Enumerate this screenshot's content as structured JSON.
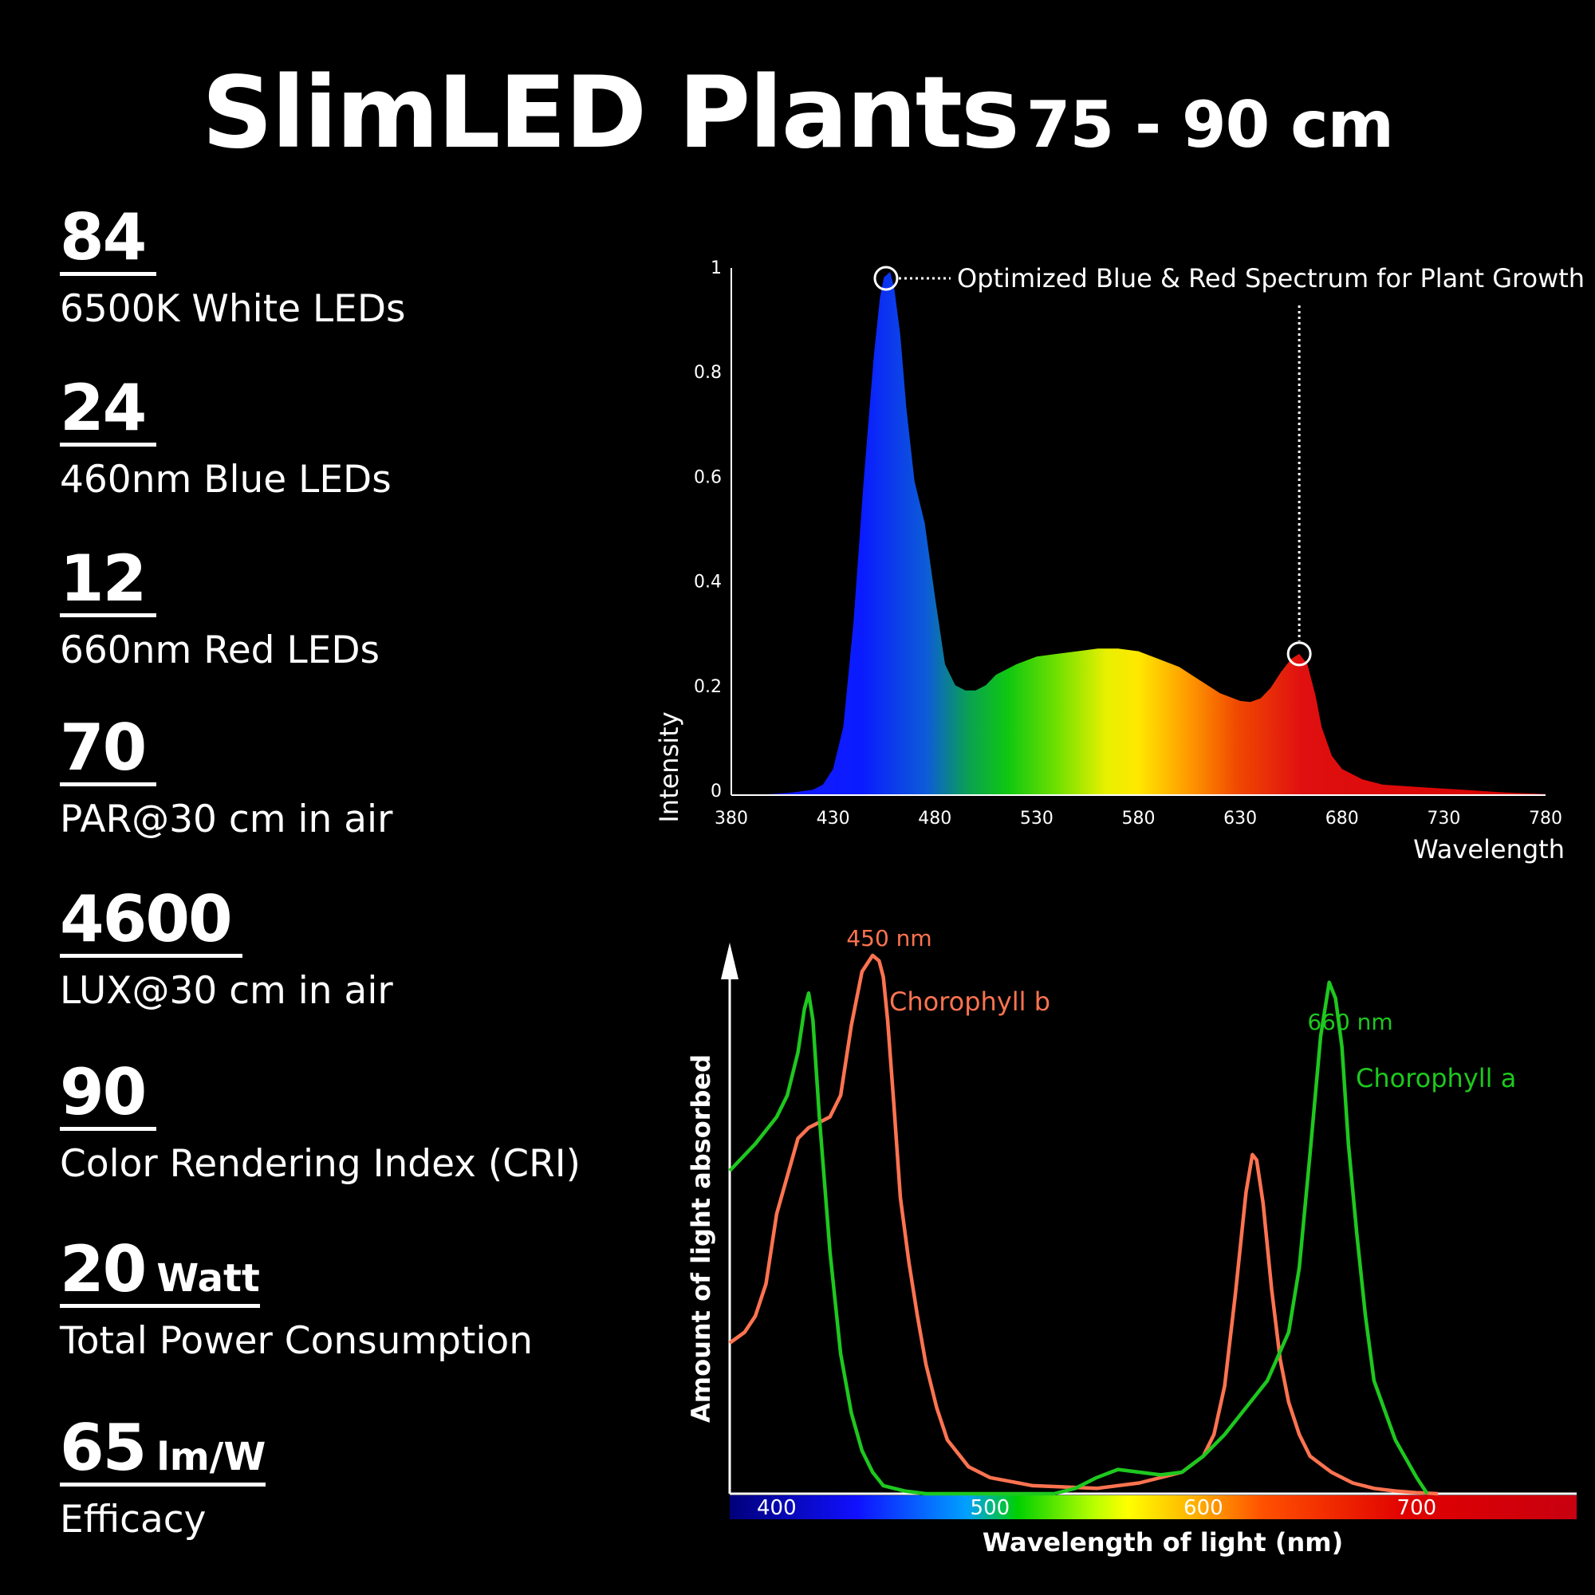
{
  "title": {
    "main": "SlimLED Plants",
    "sub": "75 - 90 cm"
  },
  "specs": [
    {
      "value": "84",
      "unit": "",
      "label": "6500K White LEDs"
    },
    {
      "value": "24",
      "unit": "",
      "label": "460nm Blue LEDs"
    },
    {
      "value": "12",
      "unit": "",
      "label": "660nm Red LEDs"
    },
    {
      "value": "70",
      "unit": "",
      "label": "PAR@30 cm in air"
    },
    {
      "value": "4600",
      "unit": "",
      "label": "LUX@30 cm in air"
    },
    {
      "value": "90",
      "unit": "",
      "label": "Color Rendering Index (CRI)"
    },
    {
      "value": "20",
      "unit": "Watt",
      "label": "Total Power Consumption"
    },
    {
      "value": "65",
      "unit": "lm/W",
      "label": "Efficacy"
    }
  ],
  "chart_data": [
    {
      "type": "area",
      "title": "",
      "xlabel": "Wavelength",
      "ylabel": "Intensity",
      "xlim": [
        380,
        780
      ],
      "ylim": [
        0,
        1
      ],
      "x_ticks": [
        380,
        430,
        480,
        530,
        580,
        630,
        680,
        730,
        780
      ],
      "y_ticks": [
        0,
        0.2,
        0.4,
        0.6,
        0.8,
        1
      ],
      "y_tick_labels": [
        "0",
        "0.2",
        "0.4",
        "0.6",
        "0.8",
        "1"
      ],
      "annotation": "Optimized Blue & Red Spectrum for Plant Growth",
      "highlighted_peaks": [
        {
          "x": 456,
          "y": 1.0
        },
        {
          "x": 659,
          "y": 0.27
        }
      ],
      "fill": "spectrum gradient",
      "series": [
        {
          "x": [
            380,
            400,
            410,
            420,
            425,
            430,
            435,
            440,
            445,
            450,
            453,
            455,
            458,
            460,
            463,
            466,
            470,
            475,
            480,
            485,
            490,
            495,
            500,
            505,
            510,
            520,
            530,
            540,
            550,
            560,
            570,
            580,
            590,
            600,
            610,
            620,
            630,
            635,
            640,
            645,
            650,
            655,
            659,
            663,
            667,
            670,
            675,
            680,
            690,
            700,
            720,
            740,
            760,
            780
          ],
          "y": [
            0,
            0.002,
            0.005,
            0.01,
            0.02,
            0.05,
            0.13,
            0.33,
            0.6,
            0.84,
            0.95,
            0.99,
            1.0,
            0.97,
            0.88,
            0.74,
            0.6,
            0.52,
            0.38,
            0.25,
            0.21,
            0.2,
            0.2,
            0.21,
            0.23,
            0.25,
            0.265,
            0.27,
            0.275,
            0.28,
            0.28,
            0.275,
            0.26,
            0.245,
            0.22,
            0.195,
            0.18,
            0.178,
            0.185,
            0.205,
            0.235,
            0.26,
            0.27,
            0.25,
            0.19,
            0.13,
            0.075,
            0.05,
            0.03,
            0.02,
            0.015,
            0.01,
            0.005,
            0.002
          ]
        }
      ]
    },
    {
      "type": "line",
      "title": "",
      "xlabel": "Wavelength of light (nm)",
      "ylabel": "Amount of light absorbed",
      "xlim": [
        378,
        775
      ],
      "ylim": [
        0,
        1
      ],
      "x_ticks": [
        400,
        500,
        600,
        700
      ],
      "series": [
        {
          "name": "Chorophyll b",
          "color": "#ff7350",
          "peak_label": "450 nm",
          "x": [
            378,
            385,
            390,
            395,
            400,
            410,
            415,
            420,
            425,
            430,
            435,
            440,
            445,
            448,
            450,
            452,
            455,
            458,
            462,
            466,
            470,
            475,
            480,
            490,
            500,
            520,
            550,
            570,
            590,
            600,
            605,
            610,
            615,
            620,
            623,
            625,
            628,
            632,
            636,
            640,
            645,
            650,
            660,
            670,
            680,
            690,
            700,
            710
          ],
          "y": [
            0.28,
            0.3,
            0.33,
            0.39,
            0.52,
            0.66,
            0.68,
            0.69,
            0.7,
            0.74,
            0.87,
            0.97,
            1.0,
            0.99,
            0.96,
            0.88,
            0.72,
            0.55,
            0.43,
            0.33,
            0.24,
            0.16,
            0.1,
            0.05,
            0.03,
            0.015,
            0.01,
            0.02,
            0.04,
            0.07,
            0.11,
            0.2,
            0.37,
            0.56,
            0.63,
            0.62,
            0.54,
            0.38,
            0.25,
            0.17,
            0.11,
            0.07,
            0.04,
            0.02,
            0.01,
            0.005,
            0.002,
            0
          ]
        },
        {
          "name": "Chorophyll a",
          "color": "#1ec81e",
          "peak_label": "660 nm",
          "x": [
            378,
            390,
            400,
            405,
            410,
            413,
            415,
            417,
            420,
            425,
            430,
            435,
            440,
            445,
            450,
            460,
            470,
            480,
            530,
            540,
            550,
            560,
            570,
            580,
            590,
            600,
            610,
            620,
            630,
            640,
            645,
            650,
            655,
            659,
            662,
            665,
            668,
            672,
            676,
            680,
            690,
            700,
            705
          ],
          "y": [
            0.6,
            0.65,
            0.7,
            0.74,
            0.82,
            0.9,
            0.93,
            0.88,
            0.7,
            0.45,
            0.26,
            0.15,
            0.08,
            0.04,
            0.015,
            0.005,
            0,
            0,
            0,
            0.01,
            0.03,
            0.045,
            0.04,
            0.035,
            0.04,
            0.07,
            0.11,
            0.16,
            0.21,
            0.3,
            0.42,
            0.63,
            0.85,
            0.95,
            0.92,
            0.83,
            0.65,
            0.48,
            0.33,
            0.21,
            0.1,
            0.03,
            0
          ]
        }
      ]
    }
  ]
}
